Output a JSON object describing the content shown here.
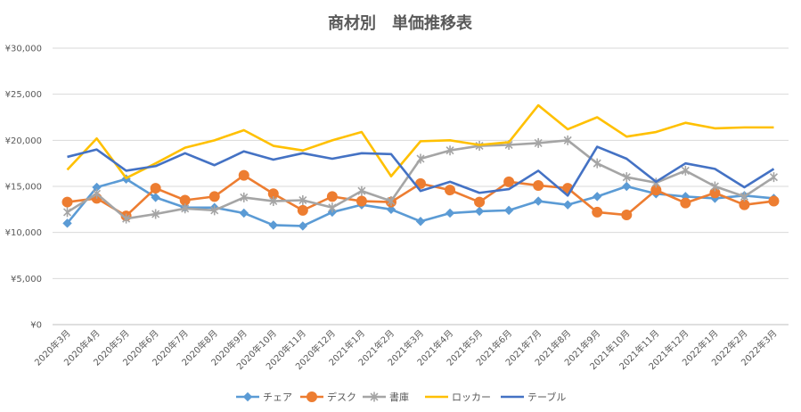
{
  "chart_data": {
    "type": "line",
    "title": "商材別　単価推移表",
    "ylim": [
      0,
      30000
    ],
    "y_ticks": [
      0,
      5000,
      10000,
      15000,
      20000,
      25000,
      30000
    ],
    "y_tick_labels": [
      "¥0",
      "¥5,000",
      "¥10,000",
      "¥15,000",
      "¥20,000",
      "¥25,000",
      "¥30,000"
    ],
    "grid": true,
    "legend_position": "bottom",
    "categories": [
      "2020年3月",
      "2020年4月",
      "2020年5月",
      "2020年6月",
      "2020年7月",
      "2020年8月",
      "2020年9月",
      "2020年10月",
      "2020年11月",
      "2020年12月",
      "2021年1月",
      "2021年2月",
      "2021年3月",
      "2021年4月",
      "2021年5月",
      "2021年6月",
      "2021年7月",
      "2021年8月",
      "2021年9月",
      "2021年10月",
      "2021年11月",
      "2021年12月",
      "2022年1月",
      "2022年2月",
      "2022年3月"
    ],
    "series": [
      {
        "name": "チェア",
        "color": "#5b9bd5",
        "marker": "diamond",
        "values": [
          11000,
          14900,
          15800,
          13800,
          12700,
          12700,
          12100,
          10800,
          10700,
          12200,
          13000,
          12500,
          11200,
          12100,
          12300,
          12400,
          13400,
          13000,
          13900,
          15000,
          14200,
          13900,
          13700,
          14000,
          13700
        ]
      },
      {
        "name": "デスク",
        "color": "#ed7d31",
        "marker": "circle",
        "values": [
          13300,
          13700,
          11800,
          14800,
          13500,
          13900,
          16200,
          14200,
          12400,
          13900,
          13400,
          13300,
          15300,
          14600,
          13300,
          15500,
          15100,
          14800,
          12200,
          11900,
          14600,
          13200,
          14300,
          13000,
          13400
        ]
      },
      {
        "name": "書庫",
        "color": "#a5a5a5",
        "marker": "star",
        "values": [
          12200,
          14200,
          11500,
          12000,
          12600,
          12400,
          13800,
          13400,
          13500,
          12700,
          14500,
          13400,
          18000,
          18900,
          19400,
          19500,
          19700,
          20000,
          17500,
          16000,
          15400,
          16700,
          15000,
          13900,
          16000
        ]
      },
      {
        "name": "ロッカー",
        "color": "#ffc000",
        "marker": "none",
        "values": [
          16800,
          20200,
          15900,
          17500,
          19200,
          20000,
          21100,
          19400,
          18900,
          20000,
          20900,
          16100,
          19900,
          20000,
          19500,
          19800,
          23800,
          21200,
          22500,
          20400,
          20900,
          21900,
          21300,
          21400,
          21400
        ]
      },
      {
        "name": "テーブル",
        "color": "#4472c4",
        "marker": "none",
        "values": [
          18200,
          19000,
          16700,
          17200,
          18600,
          17300,
          18800,
          17900,
          18600,
          18000,
          18600,
          18500,
          14500,
          15500,
          14300,
          14700,
          16700,
          14000,
          19300,
          18000,
          15500,
          17500,
          16900,
          14900,
          16900
        ]
      }
    ]
  }
}
